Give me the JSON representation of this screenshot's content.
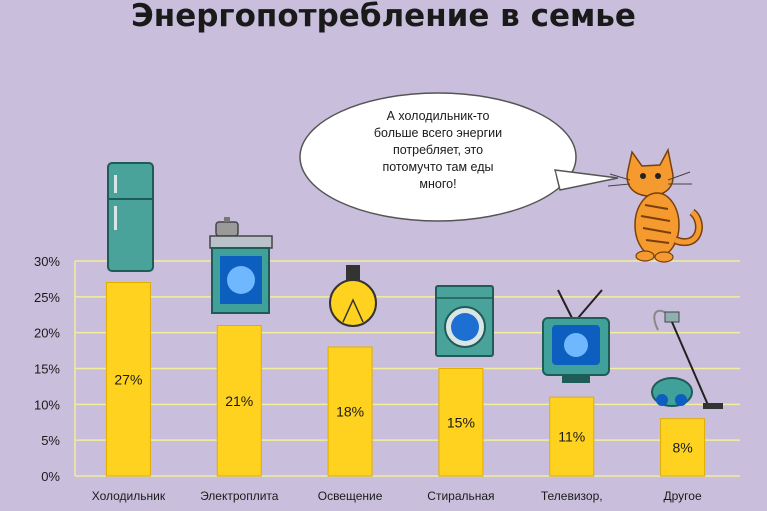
{
  "chart_data": {
    "type": "bar",
    "title": "Энергопотребление в семье",
    "categories": [
      "Холодильник",
      "Электроплита",
      "Освещение",
      "Стиральная",
      "Телевизор,",
      "Другое"
    ],
    "values": [
      27,
      21,
      18,
      15,
      11,
      8
    ],
    "value_labels": [
      "27%",
      "21%",
      "18%",
      "15%",
      "11%",
      "8%"
    ],
    "y_ticks": [
      "0%",
      "5%",
      "10%",
      "15%",
      "20%",
      "25%",
      "30%"
    ],
    "ylim": [
      0,
      30
    ],
    "grid": true,
    "bar_color": "#ffd21f",
    "background": "#c9bfdc"
  },
  "speech_bubble": {
    "lines": [
      "А холодильник-то",
      "больше всего энергии",
      "потребляет, это",
      "потомучто там еды",
      "много!"
    ]
  },
  "icons": [
    "refrigerator-icon",
    "stove-icon",
    "light-bulb-icon",
    "washing-machine-icon",
    "tv-icon",
    "vacuum-cleaner-icon",
    "cat-icon"
  ]
}
